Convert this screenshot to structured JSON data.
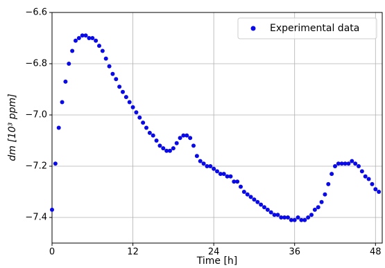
{
  "chart_data": {
    "type": "scatter",
    "xlabel": "Time [h]",
    "ylabel": "dm [10³ ppm]",
    "xlim": [
      0,
      49
    ],
    "ylim": [
      -7.5,
      -6.6
    ],
    "xticks": [
      0,
      12,
      24,
      36,
      48
    ],
    "yticks": [
      {
        "value": -7.4,
        "label": "−7.4"
      },
      {
        "value": -7.2,
        "label": "−7.2"
      },
      {
        "value": -7.0,
        "label": "−7.0"
      },
      {
        "value": -6.8,
        "label": "−6.8"
      },
      {
        "value": -6.6,
        "label": "−6.6"
      }
    ],
    "grid": true,
    "legend": "upper right",
    "series": [
      {
        "name": "Experimental data",
        "color": "#0a0ae6",
        "x": [
          0,
          0.5,
          1,
          1.5,
          2,
          2.5,
          3,
          3.5,
          4,
          4.5,
          5,
          5.5,
          6,
          6.5,
          7,
          7.5,
          8,
          8.5,
          9,
          9.5,
          10,
          10.5,
          11,
          11.5,
          12,
          12.5,
          13,
          13.5,
          14,
          14.5,
          15,
          15.5,
          16,
          16.5,
          17,
          17.5,
          18,
          18.5,
          19,
          19.5,
          20,
          20.5,
          21,
          21.5,
          22,
          22.5,
          23,
          23.5,
          24,
          24.5,
          25,
          25.5,
          26,
          26.5,
          27,
          27.5,
          28,
          28.5,
          29,
          29.5,
          30,
          30.5,
          31,
          31.5,
          32,
          32.5,
          33,
          33.5,
          34,
          34.5,
          35,
          35.5,
          36,
          36.5,
          37,
          37.5,
          38,
          38.5,
          39,
          39.5,
          40,
          40.5,
          41,
          41.5,
          42,
          42.5,
          43,
          43.5,
          44,
          44.5,
          45,
          45.5,
          46,
          46.5,
          47,
          47.5,
          48,
          48.5
        ],
        "values": [
          -7.37,
          -7.19,
          -7.05,
          -6.95,
          -6.87,
          -6.8,
          -6.75,
          -6.71,
          -6.7,
          -6.69,
          -6.69,
          -6.7,
          -6.7,
          -6.71,
          -6.73,
          -6.75,
          -6.78,
          -6.81,
          -6.84,
          -6.86,
          -6.89,
          -6.91,
          -6.93,
          -6.95,
          -6.97,
          -6.99,
          -7.01,
          -7.03,
          -7.05,
          -7.07,
          -7.08,
          -7.1,
          -7.12,
          -7.13,
          -7.14,
          -7.14,
          -7.13,
          -7.11,
          -7.09,
          -7.08,
          -7.08,
          -7.09,
          -7.12,
          -7.16,
          -7.18,
          -7.19,
          -7.2,
          -7.2,
          -7.21,
          -7.22,
          -7.23,
          -7.23,
          -7.24,
          -7.24,
          -7.26,
          -7.26,
          -7.28,
          -7.3,
          -7.31,
          -7.32,
          -7.33,
          -7.34,
          -7.35,
          -7.36,
          -7.37,
          -7.38,
          -7.39,
          -7.39,
          -7.4,
          -7.4,
          -7.4,
          -7.41,
          -7.41,
          -7.4,
          -7.41,
          -7.41,
          -7.4,
          -7.39,
          -7.37,
          -7.36,
          -7.34,
          -7.31,
          -7.27,
          -7.23,
          -7.2,
          -7.19,
          -7.19,
          -7.19,
          -7.19,
          -7.18,
          -7.19,
          -7.2,
          -7.22,
          -7.24,
          -7.25,
          -7.27,
          -7.29,
          -7.3
        ]
      }
    ]
  }
}
